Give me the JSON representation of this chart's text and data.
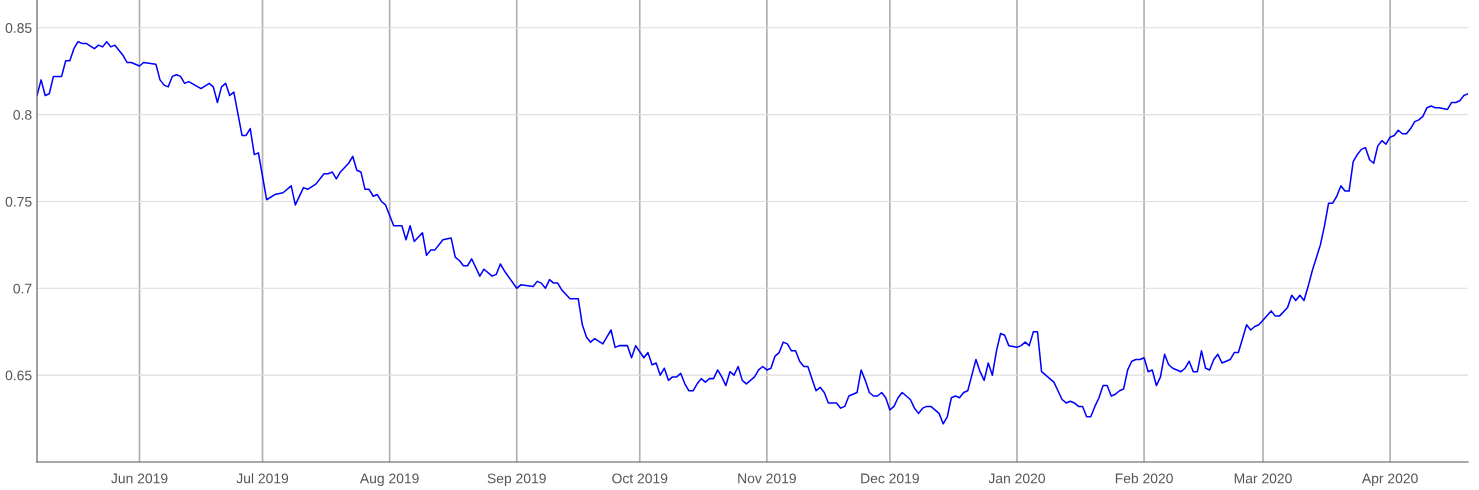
{
  "chart_data": {
    "type": "line",
    "x": [
      "2019-05-07",
      "2019-05-08",
      "2019-05-09",
      "2019-05-10",
      "2019-05-11",
      "2019-05-13",
      "2019-05-14",
      "2019-05-15",
      "2019-05-16",
      "2019-05-17",
      "2019-05-18",
      "2019-05-19",
      "2019-05-21",
      "2019-05-22",
      "2019-05-23",
      "2019-05-24",
      "2019-05-25",
      "2019-05-26",
      "2019-05-28",
      "2019-05-29",
      "2019-05-30",
      "2019-06-01",
      "2019-06-02",
      "2019-06-05",
      "2019-06-06",
      "2019-06-07",
      "2019-06-08",
      "2019-06-09",
      "2019-06-10",
      "2019-06-11",
      "2019-06-12",
      "2019-06-13",
      "2019-06-16",
      "2019-06-18",
      "2019-06-19",
      "2019-06-20",
      "2019-06-21",
      "2019-06-22",
      "2019-06-23",
      "2019-06-24",
      "2019-06-26",
      "2019-06-27",
      "2019-06-28",
      "2019-06-29",
      "2019-06-30",
      "2019-07-02",
      "2019-07-04",
      "2019-07-06",
      "2019-07-08",
      "2019-07-09",
      "2019-07-11",
      "2019-07-12",
      "2019-07-14",
      "2019-07-16",
      "2019-07-17",
      "2019-07-18",
      "2019-07-19",
      "2019-07-20",
      "2019-07-22",
      "2019-07-23",
      "2019-07-24",
      "2019-07-25",
      "2019-07-26",
      "2019-07-27",
      "2019-07-28",
      "2019-07-29",
      "2019-07-30",
      "2019-07-31",
      "2019-08-02",
      "2019-08-04",
      "2019-08-05",
      "2019-08-06",
      "2019-08-07",
      "2019-08-09",
      "2019-08-10",
      "2019-08-11",
      "2019-08-12",
      "2019-08-14",
      "2019-08-16",
      "2019-08-17",
      "2019-08-18",
      "2019-08-19",
      "2019-08-20",
      "2019-08-21",
      "2019-08-23",
      "2019-08-24",
      "2019-08-26",
      "2019-08-27",
      "2019-08-28",
      "2019-08-29",
      "2019-09-01",
      "2019-09-02",
      "2019-09-05",
      "2019-09-06",
      "2019-09-07",
      "2019-09-08",
      "2019-09-09",
      "2019-09-10",
      "2019-09-11",
      "2019-09-12",
      "2019-09-14",
      "2019-09-15",
      "2019-09-16",
      "2019-09-17",
      "2019-09-18",
      "2019-09-19",
      "2019-09-20",
      "2019-09-22",
      "2019-09-23",
      "2019-09-24",
      "2019-09-25",
      "2019-09-26",
      "2019-09-28",
      "2019-09-29",
      "2019-09-30",
      "2019-10-02",
      "2019-10-03",
      "2019-10-04",
      "2019-10-05",
      "2019-10-06",
      "2019-10-07",
      "2019-10-08",
      "2019-10-09",
      "2019-10-10",
      "2019-10-11",
      "2019-10-12",
      "2019-10-13",
      "2019-10-14",
      "2019-10-15",
      "2019-10-16",
      "2019-10-17",
      "2019-10-18",
      "2019-10-19",
      "2019-10-20",
      "2019-10-21",
      "2019-10-22",
      "2019-10-23",
      "2019-10-24",
      "2019-10-25",
      "2019-10-26",
      "2019-10-27",
      "2019-10-28",
      "2019-10-29",
      "2019-10-30",
      "2019-10-31",
      "2019-11-01",
      "2019-11-02",
      "2019-11-03",
      "2019-11-04",
      "2019-11-05",
      "2019-11-06",
      "2019-11-07",
      "2019-11-08",
      "2019-11-09",
      "2019-11-10",
      "2019-11-11",
      "2019-11-12",
      "2019-11-13",
      "2019-11-14",
      "2019-11-15",
      "2019-11-16",
      "2019-11-17",
      "2019-11-18",
      "2019-11-19",
      "2019-11-20",
      "2019-11-21",
      "2019-11-22",
      "2019-11-23",
      "2019-11-24",
      "2019-11-25",
      "2019-11-26",
      "2019-11-27",
      "2019-11-28",
      "2019-11-29",
      "2019-11-30",
      "2019-12-01",
      "2019-12-02",
      "2019-12-03",
      "2019-12-04",
      "2019-12-06",
      "2019-12-07",
      "2019-12-08",
      "2019-12-09",
      "2019-12-10",
      "2019-12-11",
      "2019-12-12",
      "2019-12-13",
      "2019-12-14",
      "2019-12-15",
      "2019-12-16",
      "2019-12-17",
      "2019-12-18",
      "2019-12-19",
      "2019-12-20",
      "2019-12-21",
      "2019-12-22",
      "2019-12-23",
      "2019-12-24",
      "2019-12-25",
      "2019-12-26",
      "2019-12-27",
      "2019-12-28",
      "2019-12-29",
      "2019-12-30",
      "2020-01-01",
      "2020-01-02",
      "2020-01-03",
      "2020-01-04",
      "2020-01-05",
      "2020-01-06",
      "2020-01-07",
      "2020-01-08",
      "2020-01-09",
      "2020-01-10",
      "2020-01-11",
      "2020-01-12",
      "2020-01-13",
      "2020-01-14",
      "2020-01-15",
      "2020-01-16",
      "2020-01-17",
      "2020-01-18",
      "2020-01-19",
      "2020-01-20",
      "2020-01-21",
      "2020-01-22",
      "2020-01-23",
      "2020-01-24",
      "2020-01-25",
      "2020-01-26",
      "2020-01-27",
      "2020-01-28",
      "2020-01-29",
      "2020-01-30",
      "2020-01-31",
      "2020-02-01",
      "2020-02-02",
      "2020-02-03",
      "2020-02-04",
      "2020-02-05",
      "2020-02-06",
      "2020-02-07",
      "2020-02-08",
      "2020-02-09",
      "2020-02-10",
      "2020-02-11",
      "2020-02-12",
      "2020-02-13",
      "2020-02-14",
      "2020-02-15",
      "2020-02-16",
      "2020-02-17",
      "2020-02-18",
      "2020-02-19",
      "2020-02-20",
      "2020-02-21",
      "2020-02-22",
      "2020-02-23",
      "2020-02-24",
      "2020-02-25",
      "2020-02-26",
      "2020-02-27",
      "2020-02-28",
      "2020-02-29",
      "2020-03-03",
      "2020-03-04",
      "2020-03-05",
      "2020-03-07",
      "2020-03-08",
      "2020-03-09",
      "2020-03-10",
      "2020-03-11",
      "2020-03-12",
      "2020-03-13",
      "2020-03-15",
      "2020-03-16",
      "2020-03-17",
      "2020-03-18",
      "2020-03-19",
      "2020-03-20",
      "2020-03-21",
      "2020-03-22",
      "2020-03-23",
      "2020-03-24",
      "2020-03-25",
      "2020-03-26",
      "2020-03-27",
      "2020-03-28",
      "2020-03-29",
      "2020-03-30",
      "2020-03-31",
      "2020-04-01",
      "2020-04-02",
      "2020-04-03",
      "2020-04-04",
      "2020-04-05",
      "2020-04-06",
      "2020-04-07",
      "2020-04-08",
      "2020-04-09",
      "2020-04-10",
      "2020-04-11",
      "2020-04-12",
      "2020-04-13",
      "2020-04-15",
      "2020-04-16",
      "2020-04-17",
      "2020-04-18",
      "2020-04-19",
      "2020-04-20"
    ],
    "series": [
      {
        "color": "#0000ff",
        "values": [
          0.811,
          0.82,
          0.811,
          0.812,
          0.822,
          0.822,
          0.831,
          0.831,
          0.838,
          0.842,
          0.841,
          0.841,
          0.838,
          0.84,
          0.839,
          0.842,
          0.839,
          0.84,
          0.834,
          0.83,
          0.83,
          0.828,
          0.83,
          0.829,
          0.82,
          0.817,
          0.816,
          0.822,
          0.823,
          0.822,
          0.818,
          0.819,
          0.815,
          0.818,
          0.816,
          0.807,
          0.816,
          0.818,
          0.811,
          0.813,
          0.788,
          0.788,
          0.792,
          0.777,
          0.778,
          0.751,
          0.754,
          0.755,
          0.759,
          0.748,
          0.758,
          0.757,
          0.76,
          0.766,
          0.766,
          0.767,
          0.763,
          0.767,
          0.772,
          0.776,
          0.768,
          0.767,
          0.757,
          0.757,
          0.753,
          0.754,
          0.75,
          0.748,
          0.736,
          0.736,
          0.728,
          0.736,
          0.727,
          0.732,
          0.719,
          0.722,
          0.722,
          0.728,
          0.729,
          0.718,
          0.716,
          0.713,
          0.713,
          0.717,
          0.707,
          0.711,
          0.707,
          0.708,
          0.714,
          0.71,
          0.7,
          0.702,
          0.701,
          0.704,
          0.703,
          0.7,
          0.705,
          0.703,
          0.703,
          0.699,
          0.694,
          0.694,
          0.694,
          0.679,
          0.672,
          0.669,
          0.671,
          0.668,
          0.672,
          0.676,
          0.666,
          0.667,
          0.667,
          0.66,
          0.667,
          0.66,
          0.663,
          0.656,
          0.657,
          0.65,
          0.654,
          0.647,
          0.649,
          0.649,
          0.651,
          0.645,
          0.641,
          0.641,
          0.645,
          0.648,
          0.646,
          0.648,
          0.648,
          0.653,
          0.649,
          0.644,
          0.652,
          0.65,
          0.655,
          0.647,
          0.645,
          0.647,
          0.649,
          0.653,
          0.655,
          0.653,
          0.654,
          0.661,
          0.663,
          0.669,
          0.668,
          0.664,
          0.664,
          0.658,
          0.655,
          0.655,
          0.648,
          0.641,
          0.643,
          0.64,
          0.634,
          0.634,
          0.634,
          0.631,
          0.632,
          0.638,
          0.639,
          0.64,
          0.653,
          0.647,
          0.64,
          0.638,
          0.638,
          0.64,
          0.637,
          0.63,
          0.632,
          0.637,
          0.64,
          0.636,
          0.631,
          0.628,
          0.631,
          0.632,
          0.632,
          0.63,
          0.628,
          0.622,
          0.626,
          0.637,
          0.638,
          0.637,
          0.64,
          0.641,
          0.65,
          0.659,
          0.652,
          0.647,
          0.657,
          0.65,
          0.664,
          0.674,
          0.673,
          0.667,
          0.666,
          0.667,
          0.669,
          0.667,
          0.675,
          0.675,
          0.652,
          0.65,
          0.648,
          0.646,
          0.641,
          0.636,
          0.634,
          0.635,
          0.634,
          0.632,
          0.632,
          0.626,
          0.626,
          0.632,
          0.637,
          0.644,
          0.644,
          0.638,
          0.639,
          0.641,
          0.642,
          0.653,
          0.658,
          0.659,
          0.659,
          0.66,
          0.652,
          0.653,
          0.644,
          0.649,
          0.662,
          0.656,
          0.654,
          0.653,
          0.652,
          0.654,
          0.658,
          0.652,
          0.652,
          0.664,
          0.654,
          0.653,
          0.659,
          0.662,
          0.657,
          0.658,
          0.659,
          0.663,
          0.663,
          0.671,
          0.679,
          0.676,
          0.678,
          0.679,
          0.687,
          0.684,
          0.684,
          0.689,
          0.696,
          0.693,
          0.696,
          0.693,
          0.701,
          0.71,
          0.725,
          0.736,
          0.749,
          0.749,
          0.753,
          0.759,
          0.756,
          0.756,
          0.773,
          0.777,
          0.78,
          0.781,
          0.774,
          0.772,
          0.782,
          0.785,
          0.783,
          0.787,
          0.788,
          0.791,
          0.789,
          0.789,
          0.792,
          0.796,
          0.797,
          0.799,
          0.804,
          0.805,
          0.804,
          0.804,
          0.803,
          0.807,
          0.807,
          0.808,
          0.811,
          0.812
        ]
      }
    ],
    "xlim": [
      "2019-05-07",
      "2020-04-20"
    ],
    "xticks": [
      {
        "value": "2019-06-01",
        "label": "Jun 2019"
      },
      {
        "value": "2019-07-01",
        "label": "Jul 2019"
      },
      {
        "value": "2019-08-01",
        "label": "Aug 2019"
      },
      {
        "value": "2019-09-01",
        "label": "Sep 2019"
      },
      {
        "value": "2019-10-01",
        "label": "Oct 2019"
      },
      {
        "value": "2019-11-01",
        "label": "Nov 2019"
      },
      {
        "value": "2019-12-01",
        "label": "Dec 2019"
      },
      {
        "value": "2020-01-01",
        "label": "Jan 2020"
      },
      {
        "value": "2020-02-01",
        "label": "Feb 2020"
      },
      {
        "value": "2020-03-01",
        "label": "Mar 2020"
      },
      {
        "value": "2020-04-01",
        "label": "Apr 2020"
      }
    ],
    "ylim": [
      0.6,
      0.866
    ],
    "yticks": [
      0.65,
      0.7,
      0.75,
      0.8,
      0.85
    ],
    "grid": true,
    "legend": false
  }
}
